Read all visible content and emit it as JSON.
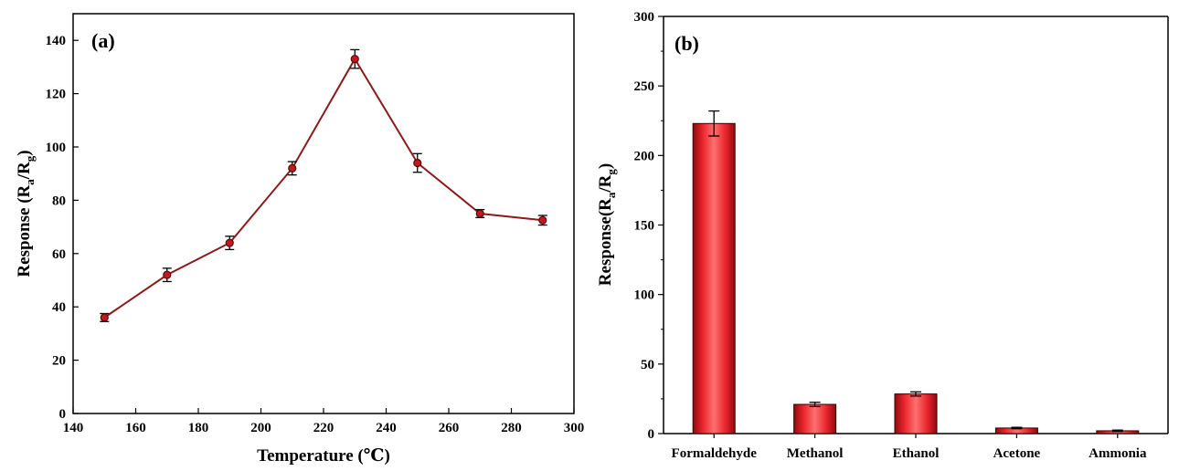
{
  "colors": {
    "line": "#8b1a1a",
    "marker": "#c0191f",
    "bar": "#e8232a",
    "bar_dark": "#8e0b0f",
    "bar_light": "#ff6a6a"
  },
  "chart_data": [
    {
      "type": "line",
      "panel_label": "(a)",
      "xlabel": "Temperature (℃)",
      "ylabel_main": "Response (R",
      "ylabel_sub_a": "a",
      "ylabel_mid": "/R",
      "ylabel_sub_g": "g",
      "ylabel_end": ")",
      "xlim": [
        140,
        300
      ],
      "ylim": [
        0,
        150
      ],
      "xticks": [
        140,
        160,
        180,
        200,
        220,
        240,
        260,
        280,
        300
      ],
      "yticks": [
        0,
        20,
        40,
        60,
        80,
        100,
        120,
        140
      ],
      "x": [
        150,
        170,
        190,
        210,
        230,
        250,
        270,
        290
      ],
      "y": [
        36,
        52,
        64,
        92,
        133,
        94,
        75,
        72.5
      ],
      "err": [
        1.5,
        2.5,
        2.5,
        2.5,
        3.5,
        3.5,
        1.5,
        1.8
      ]
    },
    {
      "type": "bar",
      "panel_label": "(b)",
      "ylabel_main": "Response(R",
      "ylabel_sub_a": "a",
      "ylabel_mid": "/R",
      "ylabel_sub_g": "g",
      "ylabel_end": ")",
      "ylim": [
        0,
        300
      ],
      "yticks": [
        0,
        50,
        100,
        150,
        200,
        250,
        300
      ],
      "categories": [
        "Formaldehyde",
        "Methanol",
        "Ethanol",
        "Acetone",
        "Ammonia"
      ],
      "values": [
        223,
        21,
        28.5,
        4,
        2
      ],
      "err": [
        9,
        1.5,
        1.5,
        0.5,
        0.5
      ]
    }
  ]
}
